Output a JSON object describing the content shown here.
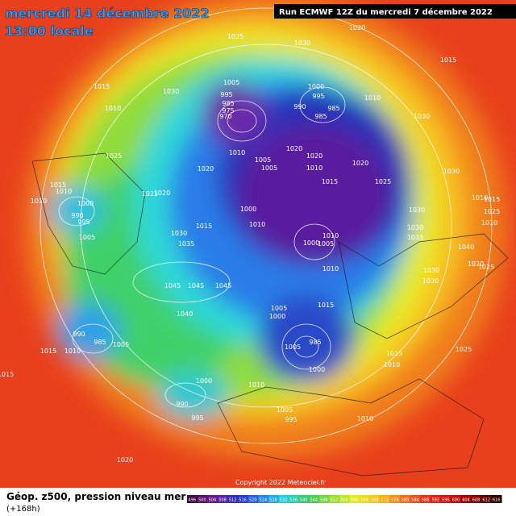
{
  "header": {
    "title": "mercredi 14 décembre 2022",
    "subtitle": "13:00 locale",
    "run": "Run ECMWF 12Z du mercredi 7 décembre 2022"
  },
  "isobar_labels": [
    "1025",
    "1030",
    "1020",
    "1015",
    "1015",
    "1030",
    "1010",
    "1005",
    "995",
    "985",
    "975",
    "970",
    "1000",
    "995",
    "990",
    "985",
    "985",
    "1010",
    "1030",
    "1020",
    "1020",
    "1020",
    "1010",
    "1015",
    "1005",
    "1005",
    "1010",
    "1020",
    "1025",
    "1015",
    "1010",
    "1010",
    "1000",
    "990",
    "995",
    "1025",
    "1020",
    "1025",
    "1030",
    "1030",
    "1000",
    "1015",
    "1010",
    "1030",
    "1035",
    "1010",
    "1000",
    "1005",
    "1010",
    "1005",
    "1045",
    "1045",
    "1045",
    "1040",
    "1005",
    "1000",
    "1015",
    "990",
    "985",
    "1005",
    "1015",
    "1010",
    "1005",
    "985",
    "1000",
    "1015",
    "1010",
    "1000",
    "1010",
    "990",
    "995",
    "1005",
    "995",
    "1010",
    "1020",
    "1015",
    "1025",
    "1040",
    "1020",
    "1025",
    "1030",
    "1030",
    "1035",
    "1030",
    "1010",
    "1015",
    "1025",
    "1010"
  ],
  "copyright": "Copyright 2022 Meteociel.fr",
  "footer": {
    "title": "Géop. z500, pression niveau mer",
    "lead": "(+168h)"
  },
  "scale": {
    "labels": [
      496,
      500,
      504,
      508,
      512,
      516,
      520,
      524,
      528,
      532,
      536,
      540,
      544,
      548,
      552,
      556,
      560,
      564,
      568,
      572,
      576,
      580,
      584,
      588,
      592,
      596,
      600,
      604,
      608,
      612,
      616
    ]
  }
}
